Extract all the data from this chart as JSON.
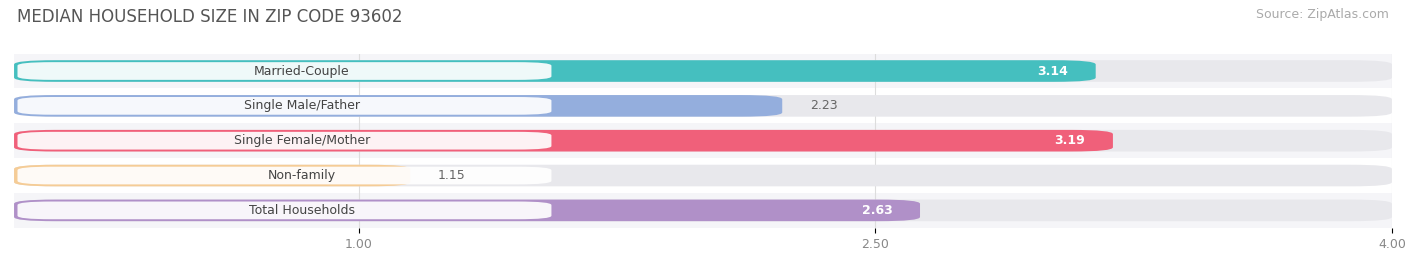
{
  "title": "MEDIAN HOUSEHOLD SIZE IN ZIP CODE 93602",
  "source": "Source: ZipAtlas.com",
  "categories": [
    "Married-Couple",
    "Single Male/Father",
    "Single Female/Mother",
    "Non-family",
    "Total Households"
  ],
  "values": [
    3.14,
    2.23,
    3.19,
    1.15,
    2.63
  ],
  "bar_colors": [
    "#45bfbf",
    "#94aedd",
    "#f0607a",
    "#f5cc96",
    "#b090c8"
  ],
  "xlim": [
    0.0,
    4.0
  ],
  "xstart": 0.0,
  "xticks": [
    1.0,
    2.5,
    4.0
  ],
  "xtick_labels": [
    "1.00",
    "2.50",
    "4.00"
  ],
  "bar_height": 0.62,
  "title_fontsize": 12,
  "source_fontsize": 9,
  "label_fontsize": 9,
  "value_fontsize": 9,
  "background_color": "#ffffff",
  "bar_background_color": "#e8e8ec",
  "title_color": "#555555",
  "source_color": "#aaaaaa",
  "label_color": "#444444",
  "value_color_inside": "#ffffff",
  "value_color_outside": "#666666",
  "inside_threshold": 2.5,
  "pill_color": "#ffffff",
  "grid_color": "#dddddd",
  "row_bg_colors": [
    "#f5f5f8",
    "#ffffff",
    "#f5f5f8",
    "#ffffff",
    "#f5f5f8"
  ]
}
